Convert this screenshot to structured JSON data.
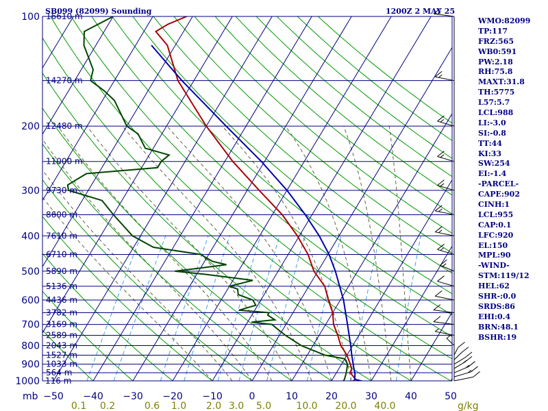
{
  "header": {
    "station": "SB099 (82099) Sounding",
    "time": "1200Z  2 MAY 25"
  },
  "indices": [
    "WMO:82099",
    "TP:117",
    "FRZ:565",
    "WB0:591",
    "PW:2.18",
    "RH:75.8",
    "MAXT:31.8",
    "TH:5775",
    "L57:5.7",
    "LCL:988",
    "LI:-3.0",
    "SI:-0.8",
    "TT:44",
    "KI:33",
    "SW:254",
    "EI:-1.4",
    "-PARCEL-",
    "CAPE:902",
    "CINH:1",
    "LCL:955",
    "CAP:0.1",
    "LFC:920",
    "EL:150",
    "MPL:90",
    "-WIND-",
    "STM:119/12",
    "HEL:62",
    "SHR-:0.0",
    "SRDS:86",
    "EHI:0.4",
    "BRN:48.1",
    "BSHR:19"
  ],
  "colors": {
    "isobar": "#000080",
    "isotherm": "#000080",
    "dry_adiabat": "#009900",
    "moist_adiabat": "#606040",
    "mixing_ratio": "#40a0e0",
    "temperature": "#aa0000",
    "dewpoint": "#004400",
    "parcel": "#0000aa",
    "text": "#000080",
    "mixing_label": "#808000"
  },
  "chart_data": {
    "type": "line",
    "title": "SB099 (82099) Sounding",
    "y_scale": "log-pressure",
    "ylabel": "mb",
    "xlabel": "",
    "ylim": [
      1000,
      100
    ],
    "xlim": [
      -50,
      50
    ],
    "pressure_ticks": [
      "100",
      "200",
      "300",
      "400",
      "500",
      "600",
      "700",
      "800",
      "900",
      "1000"
    ],
    "temperature_ticks": [
      "−50",
      "−40",
      "−30",
      "−20",
      "−10",
      "0",
      "10",
      "20",
      "30",
      "40",
      "50"
    ],
    "mixing_ratio_labels": [
      "0.1",
      "0.2",
      "0.6",
      "1.0",
      "2.0",
      "3.0",
      "5.0",
      "10.0",
      "20.0",
      "40.0"
    ],
    "mixing_ratio_unit": "g/kg",
    "axis_unit": "mb",
    "heights": [
      {
        "p": 100,
        "label": "16610 m"
      },
      {
        "p": 150,
        "label": "14270 m"
      },
      {
        "p": 200,
        "label": "12480 m"
      },
      {
        "p": 250,
        "label": "11000 m"
      },
      {
        "p": 300,
        "label": "9730 m"
      },
      {
        "p": 350,
        "label": "8600 m"
      },
      {
        "p": 400,
        "label": "7610 m"
      },
      {
        "p": 450,
        "label": "6710 m"
      },
      {
        "p": 500,
        "label": "5890 m"
      },
      {
        "p": 550,
        "label": "5136 m"
      },
      {
        "p": 600,
        "label": "4436 m"
      },
      {
        "p": 650,
        "label": "3782 m"
      },
      {
        "p": 700,
        "label": "3169 m"
      },
      {
        "p": 750,
        "label": "2589 m"
      },
      {
        "p": 800,
        "label": "2043 m"
      },
      {
        "p": 850,
        "label": "1527 m"
      },
      {
        "p": 900,
        "label": "1033 m"
      },
      {
        "p": 950,
        "label": "564 m"
      },
      {
        "p": 1000,
        "label": "116 m"
      }
    ],
    "series": [
      {
        "name": "temperature",
        "points": [
          [
            1003,
            25.3
          ],
          [
            990,
            25.8
          ],
          [
            950,
            23.5
          ],
          [
            925,
            23.2
          ],
          [
            900,
            22.2
          ],
          [
            850,
            20.0
          ],
          [
            800,
            17.0
          ],
          [
            750,
            14.7
          ],
          [
            700,
            12.0
          ],
          [
            650,
            10.0
          ],
          [
            600,
            7.0
          ],
          [
            550,
            4.0
          ],
          [
            500,
            -1.0
          ],
          [
            450,
            -5.0
          ],
          [
            400,
            -10.5
          ],
          [
            350,
            -17.5
          ],
          [
            300,
            -27.0
          ],
          [
            250,
            -38.0
          ],
          [
            200,
            -50.0
          ],
          [
            150,
            -64.0
          ],
          [
            120,
            -72.0
          ],
          [
            110,
            -77.0
          ],
          [
            105,
            -75.0
          ],
          [
            100,
            -71.5
          ]
        ]
      },
      {
        "name": "dewpoint",
        "points": [
          [
            1003,
            23.0
          ],
          [
            990,
            23.0
          ],
          [
            950,
            22.5
          ],
          [
            925,
            22.0
          ],
          [
            900,
            21.5
          ],
          [
            870,
            20.0
          ],
          [
            850,
            14.5
          ],
          [
            800,
            7.0
          ],
          [
            750,
            1.5
          ],
          [
            720,
            -1.5
          ],
          [
            700,
            -3.5
          ],
          [
            690,
            -9.0
          ],
          [
            680,
            -3.5
          ],
          [
            660,
            -6.0
          ],
          [
            650,
            -6.0
          ],
          [
            640,
            -14.0
          ],
          [
            620,
            -10.5
          ],
          [
            600,
            -12.0
          ],
          [
            580,
            -16.5
          ],
          [
            560,
            -17.5
          ],
          [
            550,
            -20.0
          ],
          [
            530,
            -15.0
          ],
          [
            510,
            -28.0
          ],
          [
            500,
            -36.0
          ],
          [
            490,
            -30.0
          ],
          [
            480,
            -24.0
          ],
          [
            470,
            -28.0
          ],
          [
            460,
            -30.0
          ],
          [
            450,
            -32.0
          ],
          [
            430,
            -45.0
          ],
          [
            400,
            -52.0
          ],
          [
            350,
            -60.0
          ],
          [
            320,
            -65.0
          ],
          [
            300,
            -75.0
          ],
          [
            290,
            -76.0
          ],
          [
            270,
            -73.0
          ],
          [
            260,
            -56.0
          ],
          [
            250,
            -56.0
          ],
          [
            240,
            -55.0
          ],
          [
            230,
            -62.0
          ],
          [
            210,
            -66.0
          ],
          [
            200,
            -70.0
          ],
          [
            170,
            -77.0
          ],
          [
            160,
            -81.0
          ],
          [
            150,
            -86.0
          ],
          [
            140,
            -87.0
          ],
          [
            120,
            -93.0
          ],
          [
            110,
            -95.0
          ],
          [
            100,
            -90.0
          ]
        ]
      },
      {
        "name": "parcel",
        "points": [
          [
            1003,
            28.0
          ],
          [
            990,
            25.6
          ],
          [
            955,
            24.8
          ],
          [
            920,
            23.6
          ],
          [
            850,
            21.2
          ],
          [
            800,
            19.5
          ],
          [
            700,
            15.5
          ],
          [
            600,
            10.8
          ],
          [
            500,
            4.4
          ],
          [
            450,
            0.3
          ],
          [
            400,
            -5.0
          ],
          [
            350,
            -11.7
          ],
          [
            300,
            -20.0
          ],
          [
            250,
            -30.8
          ],
          [
            200,
            -45.0
          ],
          [
            150,
            -63.0
          ],
          [
            120,
            -76.0
          ]
        ]
      }
    ],
    "wind_barbs": [
      {
        "p": 1000,
        "dir": 120,
        "spd": 10
      },
      {
        "p": 975,
        "dir": 130,
        "spd": 15
      },
      {
        "p": 950,
        "dir": 140,
        "spd": 15
      },
      {
        "p": 925,
        "dir": 150,
        "spd": 15
      },
      {
        "p": 900,
        "dir": 150,
        "spd": 10
      },
      {
        "p": 875,
        "dir": 160,
        "spd": 10
      },
      {
        "p": 850,
        "dir": 170,
        "spd": 10
      },
      {
        "p": 800,
        "dir": 200,
        "spd": 5
      },
      {
        "p": 750,
        "dir": 240,
        "spd": 5
      },
      {
        "p": 700,
        "dir": 250,
        "spd": 10
      },
      {
        "p": 650,
        "dir": 250,
        "spd": 10
      },
      {
        "p": 600,
        "dir": 240,
        "spd": 10
      },
      {
        "p": 550,
        "dir": 230,
        "spd": 10
      },
      {
        "p": 500,
        "dir": 220,
        "spd": 15
      },
      {
        "p": 450,
        "dir": 230,
        "spd": 15
      },
      {
        "p": 400,
        "dir": 240,
        "spd": 15
      },
      {
        "p": 350,
        "dir": 240,
        "spd": 15
      },
      {
        "p": 300,
        "dir": 230,
        "spd": 15
      },
      {
        "p": 250,
        "dir": 230,
        "spd": 15
      },
      {
        "p": 200,
        "dir": 230,
        "spd": 15
      },
      {
        "p": 150,
        "dir": 240,
        "spd": 15
      },
      {
        "p": 100,
        "dir": 250,
        "spd": 15
      }
    ]
  }
}
